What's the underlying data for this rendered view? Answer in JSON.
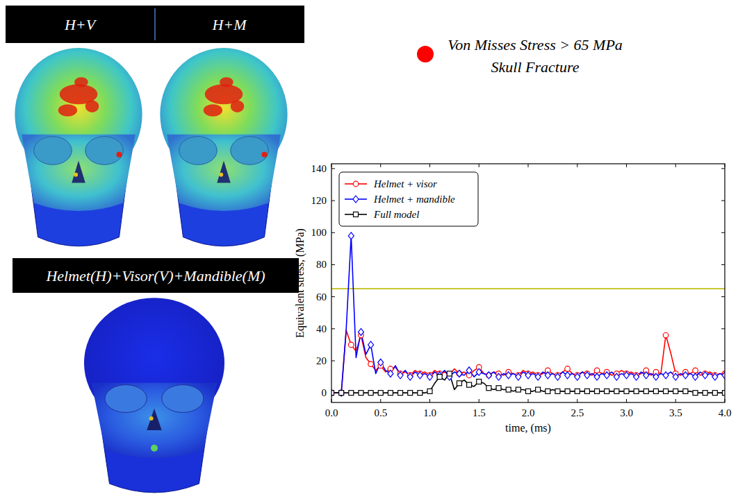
{
  "panels": {
    "labels": [
      "H+V",
      "H+M"
    ],
    "combined": "Helmet(H)+Visor(V)+Mandible(M)"
  },
  "annotation": {
    "lines": [
      "Von Misses Stress > 65 MPa",
      "Skull Fracture"
    ],
    "color": "#ff0000"
  },
  "chart_data": {
    "type": "line",
    "x_label": "time, (ms)",
    "y_label": "Equivalent stress, (MPa)",
    "xlim": [
      0,
      4
    ],
    "ylim": [
      -6,
      143
    ],
    "xticks": [
      {
        "value": 0,
        "label": "0.0"
      },
      0.5,
      {
        "value": 1,
        "label": "1.0"
      },
      1.5,
      {
        "value": 2,
        "label": "2.0"
      },
      2.5,
      {
        "value": 3,
        "label": "3.0"
      },
      3.5,
      {
        "value": 4,
        "label": "4.0"
      }
    ],
    "yticks": [
      0,
      20,
      40,
      60,
      80,
      100,
      120,
      140
    ],
    "grid": false,
    "legend": "upper left",
    "threshold": {
      "value": 65,
      "color": "#c8c832"
    },
    "x": [
      0,
      0.05,
      0.1,
      0.15,
      0.2,
      0.25,
      0.3,
      0.35,
      0.4,
      0.45,
      0.5,
      0.55,
      0.6,
      0.65,
      0.7,
      0.75,
      0.8,
      0.85,
      0.9,
      0.95,
      1,
      1.05,
      1.1,
      1.15,
      1.2,
      1.25,
      1.3,
      1.35,
      1.4,
      1.45,
      1.5,
      1.55,
      1.6,
      1.65,
      1.7,
      1.75,
      1.8,
      1.85,
      1.9,
      1.95,
      2,
      2.05,
      2.1,
      2.15,
      2.2,
      2.25,
      2.3,
      2.35,
      2.4,
      2.45,
      2.5,
      2.55,
      2.6,
      2.65,
      2.7,
      2.75,
      2.8,
      2.85,
      2.9,
      2.95,
      3,
      3.05,
      3.1,
      3.15,
      3.2,
      3.25,
      3.3,
      3.35,
      3.4,
      3.45,
      3.5,
      3.55,
      3.6,
      3.65,
      3.7,
      3.75,
      3.8,
      3.85,
      3.9,
      3.95,
      4
    ],
    "series": [
      {
        "name": "Helmet + visor",
        "color": "#ff0000",
        "marker": "circle",
        "values": [
          0,
          0,
          0,
          39,
          30,
          26,
          36,
          22,
          18,
          14,
          17,
          13,
          15,
          16,
          12,
          13,
          11,
          14,
          12,
          13,
          11,
          14,
          12,
          13,
          11,
          15,
          12,
          13,
          11,
          14,
          16,
          12,
          11,
          13,
          12,
          11,
          13,
          12,
          11,
          14,
          12,
          13,
          11,
          12,
          14,
          12,
          11,
          13,
          15,
          12,
          11,
          13,
          12,
          11,
          14,
          12,
          13,
          11,
          12,
          14,
          12,
          13,
          11,
          12,
          14,
          11,
          13,
          12,
          36,
          25,
          12,
          11,
          13,
          12,
          14,
          11,
          12,
          13,
          11,
          12,
          12
        ]
      },
      {
        "name": "Helmet + mandible",
        "color": "#0000ff",
        "marker": "diamond",
        "values": [
          0,
          0,
          0,
          40,
          98,
          22,
          38,
          24,
          30,
          12,
          19,
          14,
          12,
          17,
          11,
          14,
          10,
          13,
          11,
          12,
          10,
          13,
          11,
          14,
          10,
          13,
          12,
          11,
          14,
          10,
          13,
          12,
          11,
          13,
          10,
          12,
          11,
          12,
          10,
          13,
          11,
          12,
          10,
          13,
          11,
          12,
          10,
          13,
          11,
          12,
          10,
          13,
          11,
          12,
          10,
          12,
          11,
          13,
          10,
          12,
          11,
          12,
          10,
          13,
          11,
          12,
          10,
          12,
          11,
          13,
          10,
          12,
          11,
          12,
          10,
          13,
          11,
          12,
          10,
          12,
          11
        ]
      },
      {
        "name": "Full model",
        "color": "#000000",
        "marker": "square",
        "values": [
          0,
          0,
          0,
          0,
          0,
          0,
          0,
          0,
          0,
          0,
          0,
          0,
          0,
          0,
          0,
          0,
          0,
          0,
          0,
          0,
          1,
          6,
          10,
          8,
          12,
          2,
          6,
          8,
          5,
          4,
          7,
          6,
          3,
          2,
          3,
          2,
          2,
          1,
          2,
          2,
          1,
          1,
          2,
          1,
          1,
          2,
          1,
          1,
          1,
          1,
          1,
          1,
          1,
          1,
          1,
          1,
          1,
          1,
          1,
          1,
          1,
          1,
          1,
          1,
          1,
          1,
          1,
          1,
          1,
          1,
          1,
          1,
          1,
          1,
          0,
          0,
          0,
          0,
          0,
          0,
          0
        ]
      }
    ]
  }
}
